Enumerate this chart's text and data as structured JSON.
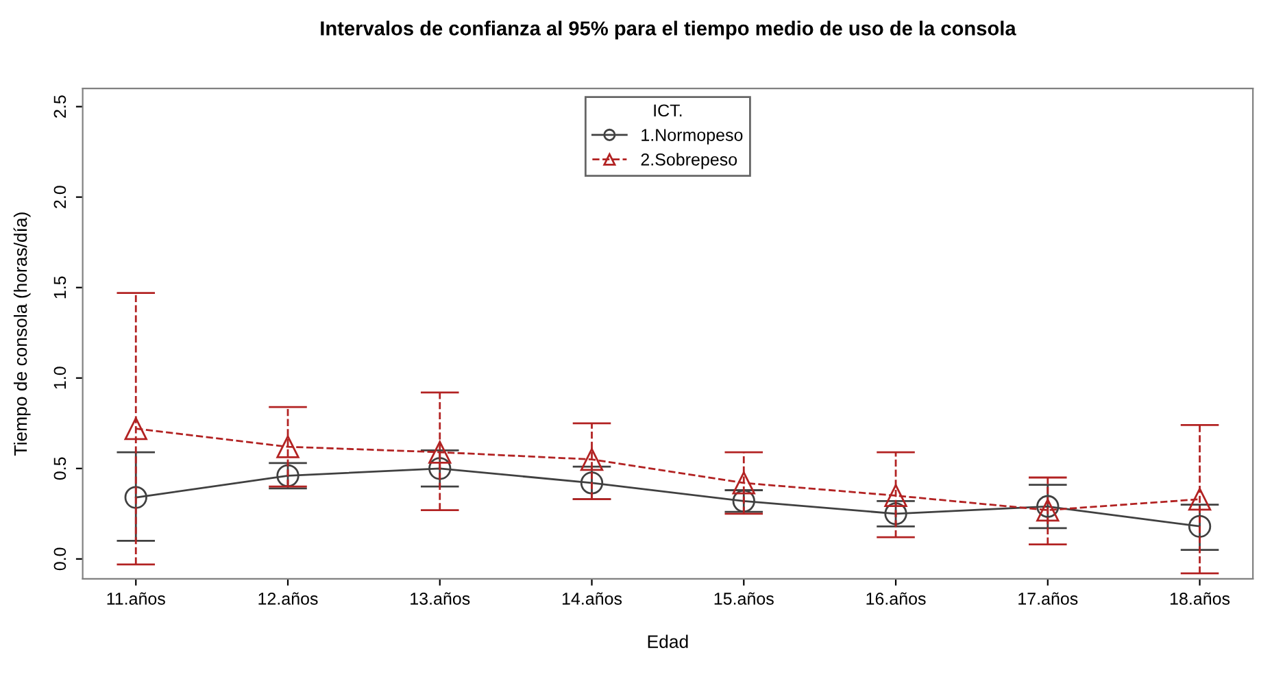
{
  "chart_data": {
    "type": "line",
    "title": "Intervalos de confianza al 95% para el tiempo medio de uso de la consola",
    "xlabel": "Edad",
    "ylabel": "Tiempo de consola (horas/día)",
    "legend_title": "ICT.",
    "categories": [
      "11.años",
      "12.años",
      "13.años",
      "14.años",
      "15.años",
      "16.años",
      "17.años",
      "18.años"
    ],
    "series": [
      {
        "name": "1.Normopeso",
        "color": "#404040",
        "marker": "circle",
        "line_style": "solid",
        "values": [
          0.34,
          0.46,
          0.5,
          0.42,
          0.32,
          0.25,
          0.29,
          0.18
        ],
        "errors": [
          [
            0.1,
            0.59
          ],
          [
            0.39,
            0.53
          ],
          [
            0.4,
            0.6
          ],
          [
            0.33,
            0.51
          ],
          [
            0.26,
            0.38
          ],
          [
            0.18,
            0.32
          ],
          [
            0.17,
            0.41
          ],
          [
            0.05,
            0.3
          ]
        ]
      },
      {
        "name": "2.Sobrepeso",
        "color": "#b22222",
        "marker": "triangle",
        "line_style": "dashed",
        "values": [
          0.72,
          0.62,
          0.59,
          0.55,
          0.42,
          0.35,
          0.27,
          0.33
        ],
        "errors": [
          [
            -0.03,
            1.47
          ],
          [
            0.4,
            0.84
          ],
          [
            0.27,
            0.92
          ],
          [
            0.33,
            0.75
          ],
          [
            0.25,
            0.59
          ],
          [
            0.12,
            0.59
          ],
          [
            0.08,
            0.45
          ],
          [
            -0.08,
            0.74
          ]
        ]
      }
    ],
    "ylim": [
      -0.11,
      2.6
    ],
    "yticks": [
      {
        "value": 0,
        "label": "0.0"
      },
      {
        "value": 0.5,
        "label": "0.5"
      },
      {
        "value": 1,
        "label": "1.0"
      },
      {
        "value": 1.5,
        "label": "1.5"
      },
      {
        "value": 2,
        "label": "2.0"
      },
      {
        "value": 2.5,
        "label": "2.5"
      }
    ],
    "grid": false,
    "legend": "top"
  }
}
